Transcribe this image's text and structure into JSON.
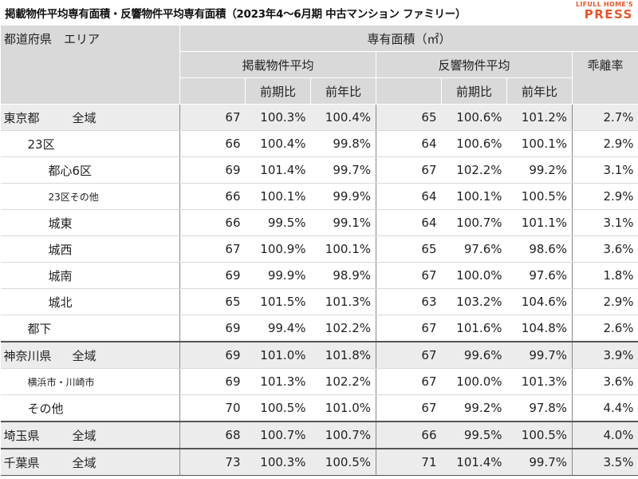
{
  "title": "掲載物件平均専有面積・反響物件平均専有面積（2023年4〜6月期 中古マンション ファミリー）",
  "brand": {
    "top": "LIFULL HOME'S",
    "main": "PRESS"
  },
  "header": {
    "pref_area": "都道府県　エリア",
    "area_label": "専有面積（㎡）",
    "listed_avg": "掲載物件平均",
    "inquiry_avg": "反響物件平均",
    "divergence": "乖離率",
    "qoq": "前期比",
    "yoy": "前年比"
  },
  "rows": [
    {
      "pref": "東京都",
      "area": "全域",
      "lv": 67,
      "lq": "100.3%",
      "ly": "100.4%",
      "iv": 65,
      "iq": "100.6%",
      "iy": "101.2%",
      "d": "2.7%"
    },
    {
      "pref": "",
      "area": "23区",
      "lv": 66,
      "lq": "100.4%",
      "ly": "99.8%",
      "iv": 64,
      "iq": "100.6%",
      "iy": "100.1%",
      "d": "2.9%"
    },
    {
      "pref": "",
      "area": "都心6区",
      "lv": 69,
      "lq": "101.4%",
      "ly": "99.7%",
      "iv": 67,
      "iq": "102.2%",
      "iy": "99.2%",
      "d": "3.1%"
    },
    {
      "pref": "",
      "area": "23区その他",
      "lv": 66,
      "lq": "100.1%",
      "ly": "99.9%",
      "iv": 64,
      "iq": "100.1%",
      "iy": "100.5%",
      "d": "2.9%"
    },
    {
      "pref": "",
      "area": "城東",
      "lv": 66,
      "lq": "99.5%",
      "ly": "99.1%",
      "iv": 64,
      "iq": "100.7%",
      "iy": "101.1%",
      "d": "3.1%"
    },
    {
      "pref": "",
      "area": "城西",
      "lv": 67,
      "lq": "100.9%",
      "ly": "100.1%",
      "iv": 65,
      "iq": "97.6%",
      "iy": "98.6%",
      "d": "3.6%"
    },
    {
      "pref": "",
      "area": "城南",
      "lv": 69,
      "lq": "99.9%",
      "ly": "98.9%",
      "iv": 67,
      "iq": "100.0%",
      "iy": "97.6%",
      "d": "1.8%"
    },
    {
      "pref": "",
      "area": "城北",
      "lv": 65,
      "lq": "101.5%",
      "ly": "101.3%",
      "iv": 63,
      "iq": "103.2%",
      "iy": "104.6%",
      "d": "2.9%"
    },
    {
      "pref": "",
      "area": "都下",
      "lv": 69,
      "lq": "99.4%",
      "ly": "102.2%",
      "iv": 67,
      "iq": "101.6%",
      "iy": "104.8%",
      "d": "2.6%"
    },
    {
      "pref": "神奈川県",
      "area": "全域",
      "lv": 69,
      "lq": "101.0%",
      "ly": "101.8%",
      "iv": 67,
      "iq": "99.6%",
      "iy": "99.7%",
      "d": "3.9%"
    },
    {
      "pref": "",
      "area": "横浜市・川崎市",
      "lv": 69,
      "lq": "101.3%",
      "ly": "102.2%",
      "iv": 67,
      "iq": "100.0%",
      "iy": "101.3%",
      "d": "3.6%"
    },
    {
      "pref": "",
      "area": "その他",
      "lv": 70,
      "lq": "100.5%",
      "ly": "101.0%",
      "iv": 67,
      "iq": "99.2%",
      "iy": "97.8%",
      "d": "4.4%"
    },
    {
      "pref": "埼玉県",
      "area": "全域",
      "lv": 68,
      "lq": "100.7%",
      "ly": "100.7%",
      "iv": 66,
      "iq": "99.5%",
      "iy": "100.5%",
      "d": "4.0%"
    },
    {
      "pref": "千葉県",
      "area": "全域",
      "lv": 73,
      "lq": "100.3%",
      "ly": "100.5%",
      "iv": 71,
      "iq": "101.4%",
      "iy": "99.7%",
      "d": "3.5%"
    }
  ]
}
